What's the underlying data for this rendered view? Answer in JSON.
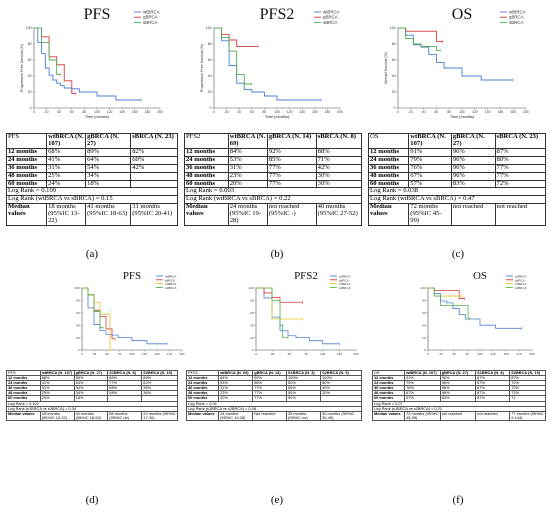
{
  "colors": {
    "wtBRCA": "#4a7fd6",
    "gBRCA": "#d63a3a",
    "sBRCA": "#4fae4f",
    "s1BRCA": "#e2c622",
    "s2BRCA": "#4fae4f"
  },
  "panels": [
    {
      "key": "a",
      "title": "PFS",
      "ylabel": "Progression Free Survival (%)",
      "xlabel": "Time (months)",
      "legend": [
        "wtBRCA",
        "gBRCA",
        "sBRCA"
      ],
      "table": {
        "header": [
          "PFS",
          "wtBRCA (N. 107)",
          "gBRCA (N. 27)",
          "sBRCA (N. 23)"
        ],
        "rows": [
          [
            "12 months",
            "68%",
            "89%",
            "82%"
          ],
          [
            "24 months",
            "41%",
            "64%",
            "60%"
          ],
          [
            "36 months",
            "31%",
            "54%",
            "42%"
          ],
          [
            "48 months",
            "25%",
            "34%",
            ""
          ],
          [
            "60 months",
            "24%",
            "18%",
            ""
          ]
        ],
        "notes": [
          "Log Rank = 0.109",
          "Log Rank (wtBRCA vs sBRCA) = 0.15"
        ],
        "median": [
          "Median values",
          "18 months (95%IC 13-22)",
          "41 months (95%IC 18-63)",
          "31 months (95%IC 20-41)"
        ]
      },
      "label": "(a)"
    },
    {
      "key": "b",
      "title": "PFS2",
      "ylabel": "Progression Free Survival (%)",
      "xlabel": "Time (months)",
      "legend": [
        "wtBRCA",
        "gBRCA",
        "sBRCA"
      ],
      "table": {
        "header": [
          "PFS2",
          "wtBRCA (N. 69)",
          "gBRCA (N. 14)",
          "sBRCA (N. 8)"
        ],
        "rows": [
          [
            "12 months",
            "84%",
            "92%",
            "88%"
          ],
          [
            "24 months",
            "53%",
            "85%",
            "71%"
          ],
          [
            "36 months",
            "31%",
            "77%",
            "42%"
          ],
          [
            "48 months",
            "23%",
            "77%",
            "30%"
          ],
          [
            "60 months",
            "20%",
            "77%",
            "30%"
          ]
        ],
        "notes": [
          "Log Rank = 0.003",
          "Log Rank (wtBRCA vs sBRCA) = 0.22"
        ],
        "median": [
          "Median values",
          "24 months (95%IC 19-28)",
          "not reached (95%IC -)",
          "40 months (95%IC 27-52)"
        ]
      },
      "label": "(b)"
    },
    {
      "key": "c",
      "title": "OS",
      "ylabel": "Overall Survival (%)",
      "xlabel": "Time (months)",
      "legend": [
        "wtBRCA",
        "gBRCA",
        "sBRCA"
      ],
      "table": {
        "header": [
          "OS",
          "wtBRCA (N. 107)",
          "gBRCA (N. 27)",
          "sBRCA (N. 23)"
        ],
        "rows": [
          [
            "12 months",
            "91%",
            "96%",
            "87%"
          ],
          [
            "24 months",
            "79%",
            "96%",
            "80%"
          ],
          [
            "36 months",
            "76%",
            "96%",
            "77%"
          ],
          [
            "48 months",
            "67%",
            "96%",
            "77%"
          ],
          [
            "60 months",
            "57%",
            "83%",
            "72%"
          ]
        ],
        "notes": [
          "Log Rank = 0.038",
          "Log Rank (wtBRCA vs sBRCA) = 0.47"
        ],
        "median": [
          "Median values",
          "72 months (95%IC 45-99)",
          "not reached",
          "not reached"
        ]
      },
      "label": "(c)"
    },
    {
      "key": "d",
      "title": "PFS",
      "ylabel": "",
      "xlabel": "",
      "legend": [
        "wtBRCA",
        "gBRCA",
        "s1BRCA",
        "s2BRCA"
      ],
      "table": {
        "header": [
          "PFS",
          "wtBRCA (N. 107)",
          "gBRCA (N. 27)",
          "S1BRCA (N. 8)",
          "S2BRCA (N. 15)"
        ],
        "rows": [
          [
            "12 months",
            "68%",
            "89%",
            "89%",
            "89%"
          ],
          [
            "24 months",
            "41%",
            "64%",
            "77%",
            "62%"
          ],
          [
            "36 months",
            "31%",
            "54%",
            "58%",
            "36%"
          ],
          [
            "48 months",
            "25%",
            "34%",
            "58%",
            "36%"
          ],
          [
            "60 months",
            "24%",
            "18%",
            "",
            ""
          ]
        ],
        "notes": [
          "Log Rank = 0,102",
          "Log Rank (s1BRCA vs s2BRCA) = 0,34"
        ],
        "median": [
          "Median values",
          "18 months (95%IC 13-22)",
          "41 months (95%IC 18-63)",
          "56 months (95%IC ne)",
          "24 months (95%IC 17-30)"
        ]
      },
      "label": "(d)"
    },
    {
      "key": "e",
      "title": "PFS2",
      "ylabel": "",
      "xlabel": "",
      "legend": [
        "wtBRCA",
        "gBRCA",
        "s1BRCA",
        "s2BRCA"
      ],
      "table": {
        "header": [
          "PFS2",
          "wtBRCA (N. 69)",
          "gBRCA (N. 14)",
          "S1BRCA (N. 3)",
          "S2BRCA (N. 5)"
        ],
        "rows": [
          [
            "12 months",
            "84%",
            "92%",
            "100%",
            "100%"
          ],
          [
            "24 months",
            "53%",
            "85%",
            "50%",
            "80%"
          ],
          [
            "36 months",
            "31%",
            "77%",
            "50%",
            "40%"
          ],
          [
            "48 months",
            "23%",
            "77%",
            "50%",
            "20%"
          ],
          [
            "60 months",
            "20%",
            "77%",
            "50%",
            ""
          ]
        ],
        "notes": [
          "Log Rank = 0,04",
          "Log Rank (s1BRCA vs s2BRCA) = 0,48"
        ],
        "median": [
          "Median values",
          "24 months (95%IC 19-28)",
          "Not reached",
          "25 months (95%IC ne)",
          "40 months (95%IC 30-49)"
        ]
      },
      "label": "(e)"
    },
    {
      "key": "f",
      "title": "OS",
      "ylabel": "",
      "xlabel": "",
      "legend": [
        "wtBRCA",
        "gBRCA",
        "s1BRCA",
        "s2BRCA"
      ],
      "table": {
        "header": [
          "OS",
          "wtBRCA (N. 107)",
          "gBRCA (N. 27)",
          "S1BRCA (N. 8)",
          "S2BRCA (N. 15)"
        ],
        "rows": [
          [
            "12 months",
            "91%",
            "96%",
            "87%",
            "87%"
          ],
          [
            "24 months",
            "79%",
            "96%",
            "87%",
            "72%"
          ],
          [
            "36 months",
            "76%",
            "96%",
            "87%",
            "72%"
          ],
          [
            "48 months",
            "67%",
            "96%",
            "87%",
            "72%"
          ],
          [
            "60 months",
            "57%",
            "83%",
            "87%",
            "72"
          ]
        ],
        "notes": [
          "Log Rank = 0,07",
          "Log Rank (s1BRCA vs s2BRCA) = 0,21"
        ],
        "median": [
          "Median values",
          "72 months (95%IC 45-99)",
          "not reached",
          "not reached",
          "77 months (95%IC 9-144)"
        ]
      },
      "label": "(f)"
    }
  ],
  "chart_data": [
    {
      "type": "line",
      "panel": "a",
      "title": "PFS",
      "xlabel": "Time (months)",
      "ylabel": "Progression Free Survival (%)",
      "xlim": [
        0,
        200
      ],
      "ylim": [
        0,
        100
      ],
      "x_ticks": [
        "0",
        "20",
        "40",
        "60",
        "80",
        "100",
        "120",
        "140",
        "160",
        "180",
        "200"
      ],
      "y_ticks": [
        "0",
        "20",
        "40",
        "60",
        "80",
        "100"
      ],
      "series": [
        {
          "name": "wtBRCA",
          "x": [
            0,
            6,
            12,
            18,
            24,
            30,
            36,
            42,
            48,
            60,
            72,
            100,
            130,
            170
          ],
          "y": [
            100,
            82,
            68,
            50,
            41,
            35,
            31,
            28,
            25,
            24,
            20,
            15,
            10,
            10
          ]
        },
        {
          "name": "gBRCA",
          "x": [
            0,
            12,
            24,
            36,
            48,
            60,
            66
          ],
          "y": [
            100,
            89,
            64,
            54,
            34,
            18,
            18
          ]
        },
        {
          "name": "sBRCA",
          "x": [
            0,
            12,
            24,
            36,
            42
          ],
          "y": [
            100,
            82,
            60,
            42,
            42
          ]
        }
      ]
    },
    {
      "type": "line",
      "panel": "b",
      "title": "PFS2",
      "xlabel": "Time (months)",
      "ylabel": "Progression Free Survival (%)",
      "xlim": [
        0,
        200
      ],
      "ylim": [
        0,
        100
      ],
      "x_ticks": [
        "0",
        "20",
        "40",
        "60",
        "80",
        "100",
        "120",
        "140",
        "160",
        "180",
        "200"
      ],
      "y_ticks": [
        "0",
        "20",
        "40",
        "60",
        "80",
        "100"
      ],
      "series": [
        {
          "name": "wtBRCA",
          "x": [
            0,
            12,
            24,
            36,
            48,
            60,
            80,
            100,
            130,
            170
          ],
          "y": [
            100,
            84,
            53,
            31,
            23,
            20,
            15,
            10,
            10,
            10
          ]
        },
        {
          "name": "gBRCA",
          "x": [
            0,
            12,
            24,
            36,
            48,
            60,
            70
          ],
          "y": [
            100,
            92,
            85,
            77,
            77,
            77,
            77
          ]
        },
        {
          "name": "sBRCA",
          "x": [
            0,
            12,
            24,
            36,
            48,
            60
          ],
          "y": [
            100,
            88,
            71,
            42,
            30,
            30
          ]
        }
      ]
    },
    {
      "type": "line",
      "panel": "c",
      "title": "OS",
      "xlabel": "Time (months)",
      "ylabel": "Overall Survival (%)",
      "xlim": [
        0,
        200
      ],
      "ylim": [
        0,
        100
      ],
      "x_ticks": [
        "0",
        "20",
        "40",
        "60",
        "80",
        "100",
        "120",
        "140",
        "160",
        "180",
        "200"
      ],
      "y_ticks": [
        "0",
        "20",
        "40",
        "60",
        "80",
        "100"
      ],
      "series": [
        {
          "name": "wtBRCA",
          "x": [
            0,
            12,
            24,
            36,
            48,
            60,
            72,
            100,
            130,
            180
          ],
          "y": [
            100,
            91,
            79,
            76,
            67,
            57,
            50,
            40,
            35,
            35
          ]
        },
        {
          "name": "gBRCA",
          "x": [
            0,
            12,
            24,
            36,
            48,
            60,
            70
          ],
          "y": [
            100,
            96,
            96,
            96,
            96,
            83,
            83
          ]
        },
        {
          "name": "sBRCA",
          "x": [
            0,
            12,
            24,
            36,
            48,
            60,
            66
          ],
          "y": [
            100,
            87,
            80,
            77,
            77,
            72,
            72
          ]
        }
      ]
    },
    {
      "type": "line",
      "panel": "d",
      "title": "PFS",
      "xlim": [
        0,
        200
      ],
      "ylim": [
        0,
        100
      ],
      "x_ticks": [
        "0",
        "25",
        "50",
        "75",
        "100",
        "125",
        "150",
        "175",
        "200"
      ],
      "y_ticks": [
        "0",
        "20",
        "40",
        "60",
        "80",
        "100"
      ],
      "series": [
        {
          "name": "wtBRCA",
          "x": [
            0,
            12,
            24,
            36,
            48,
            60,
            72,
            100,
            130,
            170
          ],
          "y": [
            100,
            68,
            41,
            31,
            25,
            24,
            20,
            15,
            10,
            10
          ]
        },
        {
          "name": "gBRCA",
          "x": [
            0,
            12,
            24,
            36,
            48,
            60,
            66
          ],
          "y": [
            100,
            89,
            64,
            54,
            34,
            18,
            18
          ]
        },
        {
          "name": "s1BRCA",
          "x": [
            0,
            12,
            24,
            36,
            48,
            56,
            60
          ],
          "y": [
            100,
            89,
            77,
            58,
            58,
            0,
            0
          ]
        },
        {
          "name": "s2BRCA",
          "x": [
            0,
            12,
            24,
            36,
            42
          ],
          "y": [
            100,
            89,
            62,
            36,
            36
          ]
        }
      ]
    },
    {
      "type": "line",
      "panel": "e",
      "title": "PFS2",
      "xlim": [
        0,
        150
      ],
      "ylim": [
        0,
        100
      ],
      "x_ticks": [
        "0",
        "25",
        "50",
        "75",
        "100",
        "125",
        "150"
      ],
      "y_ticks": [
        "0",
        "20",
        "40",
        "60",
        "80",
        "100"
      ],
      "series": [
        {
          "name": "wtBRCA",
          "x": [
            0,
            12,
            24,
            36,
            48,
            60,
            80,
            100,
            125
          ],
          "y": [
            100,
            84,
            53,
            31,
            23,
            20,
            15,
            10,
            10
          ]
        },
        {
          "name": "gBRCA",
          "x": [
            0,
            12,
            24,
            36,
            48,
            60,
            70
          ],
          "y": [
            100,
            92,
            85,
            77,
            77,
            77,
            77
          ]
        },
        {
          "name": "s1BRCA",
          "x": [
            0,
            12,
            24,
            36,
            48,
            60,
            70
          ],
          "y": [
            100,
            100,
            50,
            50,
            50,
            50,
            50
          ]
        },
        {
          "name": "s2BRCA",
          "x": [
            0,
            12,
            24,
            36,
            40,
            48
          ],
          "y": [
            100,
            100,
            80,
            40,
            20,
            20
          ]
        }
      ]
    },
    {
      "type": "line",
      "panel": "f",
      "title": "OS",
      "xlim": [
        0,
        200
      ],
      "ylim": [
        0,
        100
      ],
      "x_ticks": [
        "0",
        "25",
        "50",
        "75",
        "100",
        "125",
        "150",
        "175",
        "200"
      ],
      "y_ticks": [
        "0",
        "20",
        "40",
        "60",
        "80",
        "100"
      ],
      "series": [
        {
          "name": "wtBRCA",
          "x": [
            0,
            12,
            24,
            36,
            48,
            60,
            72,
            100,
            130,
            180
          ],
          "y": [
            100,
            91,
            79,
            76,
            67,
            57,
            50,
            40,
            35,
            35
          ]
        },
        {
          "name": "gBRCA",
          "x": [
            0,
            12,
            24,
            36,
            48,
            60,
            70
          ],
          "y": [
            100,
            96,
            96,
            96,
            96,
            83,
            83
          ]
        },
        {
          "name": "s1BRCA",
          "x": [
            0,
            12,
            24,
            36,
            48,
            60,
            66
          ],
          "y": [
            100,
            87,
            87,
            87,
            87,
            87,
            87
          ]
        },
        {
          "name": "s2BRCA",
          "x": [
            0,
            12,
            24,
            36,
            48,
            60,
            77,
            80
          ],
          "y": [
            100,
            87,
            72,
            72,
            72,
            72,
            50,
            50
          ]
        }
      ]
    }
  ]
}
